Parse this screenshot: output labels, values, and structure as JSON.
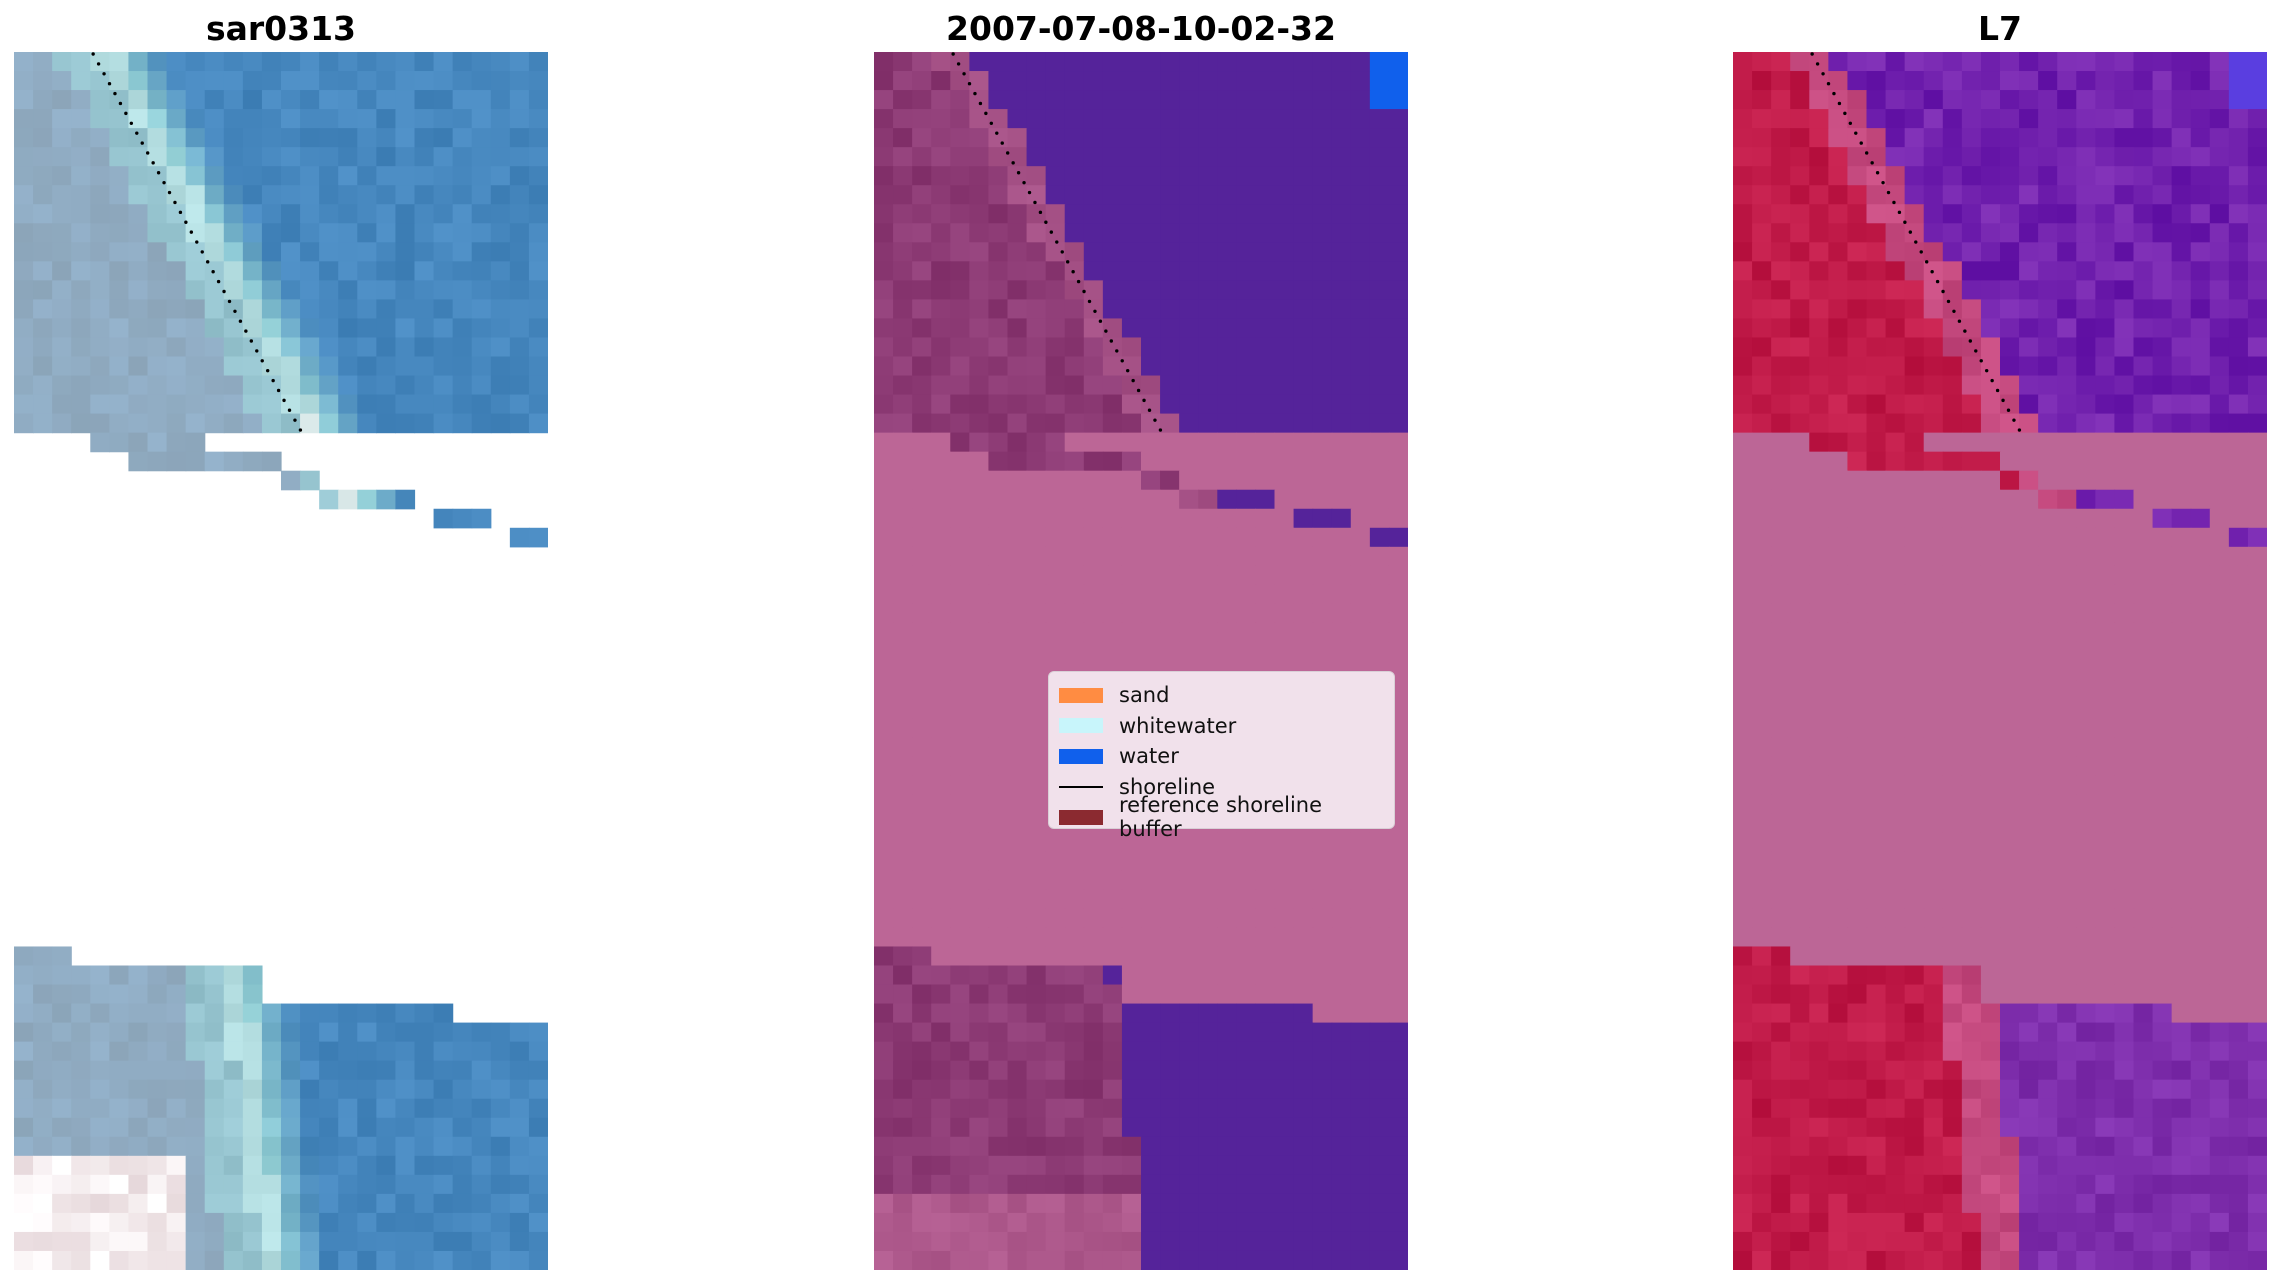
{
  "panels": [
    {
      "title": "sar0313",
      "scene": "rgb"
    },
    {
      "title": "2007-07-08-10-02-32",
      "scene": "classified"
    },
    {
      "title": "L7",
      "scene": "index"
    }
  ],
  "legend": {
    "items": [
      {
        "label": "sand",
        "color": "#ff8c42",
        "kind": "patch"
      },
      {
        "label": "whitewater",
        "color": "#c8f5fb",
        "kind": "patch"
      },
      {
        "label": "water",
        "color": "#1060ec",
        "kind": "patch"
      },
      {
        "label": "shoreline",
        "color": "#000000",
        "kind": "line"
      },
      {
        "label": "reference shoreline buffer",
        "color": "#8b2a30",
        "kind": "patch"
      }
    ]
  },
  "colors": {
    "mask": "#bc6696",
    "water_class": "#55239a",
    "land_class": "#8c3a74",
    "index_land": "#c01a48",
    "index_water": "#6a1aae"
  }
}
